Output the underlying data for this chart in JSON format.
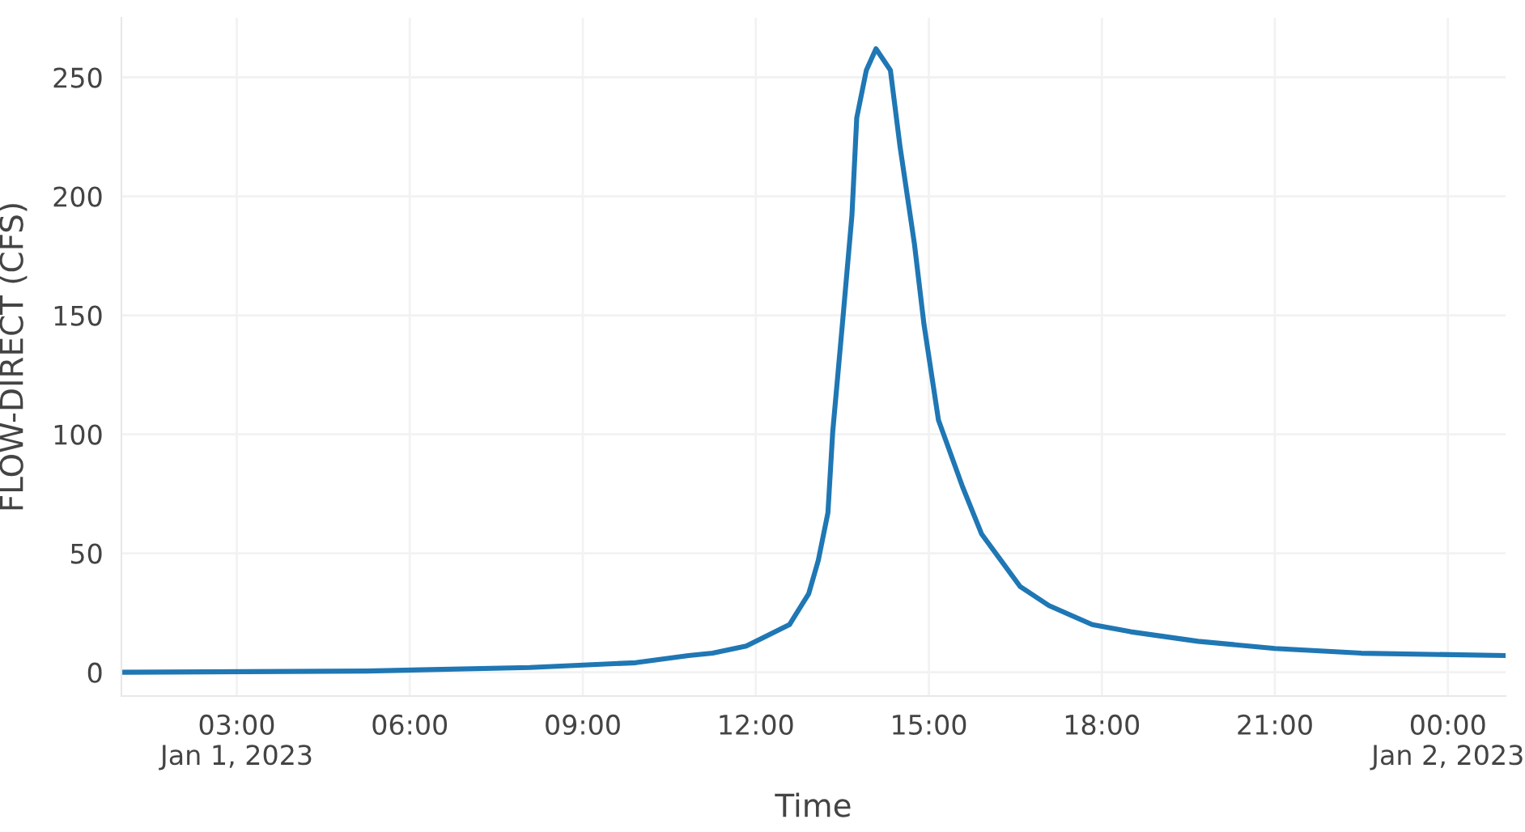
{
  "chart_data": {
    "type": "line",
    "xlabel": "Time",
    "ylabel": "FLOW-DIRECT (CFS)",
    "x": [
      "2023-01-01T01:00",
      "2023-01-01T05:15",
      "2023-01-01T08:05",
      "2023-01-01T09:55",
      "2023-01-01T10:50",
      "2023-01-01T11:15",
      "2023-01-01T11:50",
      "2023-01-01T12:10",
      "2023-01-01T12:35",
      "2023-01-01T12:55",
      "2023-01-01T13:05",
      "2023-01-01T13:15",
      "2023-01-01T13:20",
      "2023-01-01T13:30",
      "2023-01-01T13:40",
      "2023-01-01T13:45",
      "2023-01-01T13:55",
      "2023-01-01T14:05",
      "2023-01-01T14:20",
      "2023-01-01T14:30",
      "2023-01-01T14:45",
      "2023-01-01T14:55",
      "2023-01-01T15:10",
      "2023-01-01T15:35",
      "2023-01-01T15:55",
      "2023-01-01T16:15",
      "2023-01-01T16:35",
      "2023-01-01T17:05",
      "2023-01-01T17:50",
      "2023-01-01T18:30",
      "2023-01-01T19:40",
      "2023-01-01T21:00",
      "2023-01-01T22:30",
      "2023-01-02T01:00"
    ],
    "series": [
      {
        "color": "#1f77b4",
        "values": [
          0,
          0.5,
          2,
          4,
          7,
          8,
          11,
          15,
          20,
          33,
          47,
          67,
          101,
          146,
          192,
          233,
          253,
          262,
          253,
          221,
          180,
          146,
          106,
          78,
          58,
          47,
          36,
          28,
          20,
          17,
          13,
          10,
          8,
          7
        ]
      }
    ],
    "xlim": [
      "2023-01-01T01:00",
      "2023-01-02T01:00"
    ],
    "xticks": [
      {
        "value": "2023-01-01T03:00",
        "label": "03:00\nJan 1, 2023"
      },
      {
        "value": "2023-01-01T06:00",
        "label": "06:00"
      },
      {
        "value": "2023-01-01T09:00",
        "label": "09:00"
      },
      {
        "value": "2023-01-01T12:00",
        "label": "12:00"
      },
      {
        "value": "2023-01-01T15:00",
        "label": "15:00"
      },
      {
        "value": "2023-01-01T18:00",
        "label": "18:00"
      },
      {
        "value": "2023-01-01T21:00",
        "label": "21:00"
      },
      {
        "value": "2023-01-02T00:00",
        "label": "00:00\nJan 2, 2023"
      }
    ],
    "ylim": [
      -10,
      275
    ],
    "yticks": [
      0,
      50,
      100,
      150,
      200,
      250
    ],
    "grid": true,
    "marker": "none",
    "line_style": "solid"
  }
}
